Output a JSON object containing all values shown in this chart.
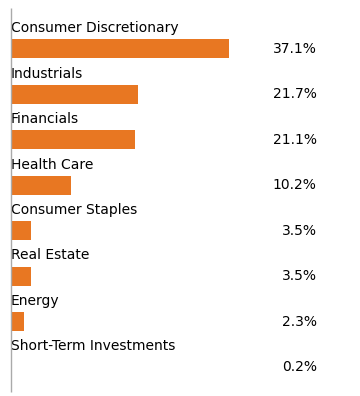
{
  "categories": [
    "Short-Term Investments",
    "Energy",
    "Real Estate",
    "Consumer Staples",
    "Health Care",
    "Financials",
    "Industrials",
    "Consumer Discretionary"
  ],
  "values": [
    0.2,
    2.3,
    3.5,
    3.5,
    10.2,
    21.1,
    21.7,
    37.1
  ],
  "labels": [
    "0.2%",
    "2.3%",
    "3.5%",
    "3.5%",
    "10.2%",
    "21.1%",
    "21.7%",
    "37.1%"
  ],
  "bar_color": "#E87722",
  "background_color": "#ffffff",
  "label_fontsize": 10,
  "category_fontsize": 10,
  "bar_height": 0.42,
  "xlim": [
    0,
    52
  ],
  "spine_color": "#aaaaaa"
}
